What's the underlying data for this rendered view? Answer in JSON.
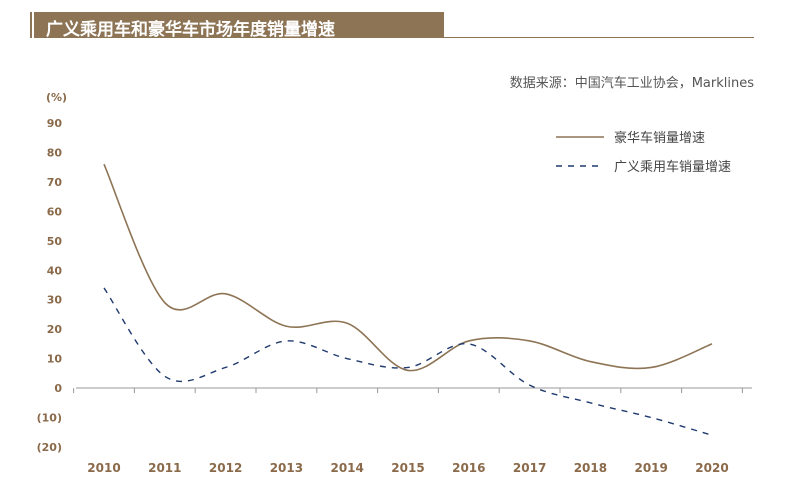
{
  "header": {
    "title": "广义乘用车和豪华车市场年度销量增速",
    "source": "数据来源：中国汽车工业协会，Marklines"
  },
  "colors": {
    "brand": "#8d7455",
    "luxury_line": "#8d7455",
    "passenger_line": "#1f3a6e",
    "tick_text": "#8a6a4a"
  },
  "chart_data": {
    "type": "line",
    "ylabel": "(%)",
    "x": [
      "2010",
      "2011",
      "2012",
      "2013",
      "2014",
      "2015",
      "2016",
      "2017",
      "2018",
      "2019",
      "2020"
    ],
    "ylim": [
      -20,
      90
    ],
    "yticks": [
      90,
      80,
      70,
      60,
      50,
      40,
      30,
      20,
      10,
      0,
      -10,
      -20
    ],
    "ytick_labels": [
      "90",
      "80",
      "70",
      "60",
      "50",
      "40",
      "30",
      "20",
      "10",
      "0",
      "(10)",
      "(20)"
    ],
    "grid": false,
    "legend": "top-right",
    "series": [
      {
        "name": "豪华车销量增速",
        "style": "solid",
        "values": [
          76,
          29,
          32,
          21,
          22,
          6,
          16,
          16,
          9,
          7,
          15
        ]
      },
      {
        "name": "广义乘用车销量增速",
        "style": "dashed",
        "values": [
          34,
          4,
          7,
          16,
          10,
          7,
          15,
          1,
          -5,
          -10,
          -16
        ]
      }
    ]
  }
}
